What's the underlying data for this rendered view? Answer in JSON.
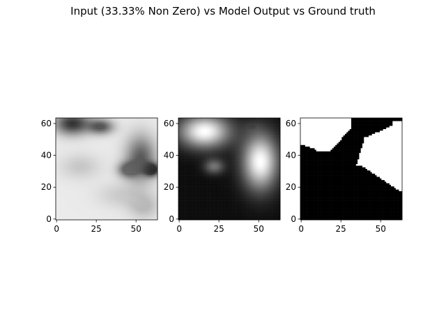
{
  "title": "Input (33.33% Non Zero) vs Model Output vs Ground truth",
  "chart_data": [
    {
      "type": "heatmap",
      "colormap": "gray",
      "image_size": [
        64,
        64
      ],
      "xticks": [
        0,
        25,
        50
      ],
      "yticks": [
        0,
        20,
        40,
        60
      ],
      "xlim": [
        -0.5,
        63.5
      ],
      "ylim": [
        63.5,
        -0.5
      ],
      "grid": false,
      "description_values": {
        "blobs": [
          {
            "cx": 10,
            "cy": 3,
            "rx": 14,
            "ry": 9,
            "value": 0.2
          },
          {
            "cx": 28,
            "cy": 5,
            "rx": 10,
            "ry": 6,
            "value": 0.35
          },
          {
            "cx": 53,
            "cy": 25,
            "rx": 12,
            "ry": 18,
            "value": 0.35
          },
          {
            "cx": 60,
            "cy": 32,
            "rx": 6,
            "ry": 5,
            "value": 0.1
          },
          {
            "cx": 45,
            "cy": 32,
            "rx": 8,
            "ry": 6,
            "value": 0.4
          },
          {
            "cx": 15,
            "cy": 30,
            "rx": 16,
            "ry": 10,
            "value": 0.78
          },
          {
            "cx": 40,
            "cy": 48,
            "rx": 18,
            "ry": 10,
            "value": 0.8
          },
          {
            "cx": 55,
            "cy": 55,
            "rx": 12,
            "ry": 10,
            "value": 0.72
          }
        ],
        "background": 0.92
      }
    },
    {
      "type": "heatmap",
      "colormap": "gray",
      "image_size": [
        64,
        64
      ],
      "xticks": [
        0,
        25,
        50
      ],
      "yticks": [
        0,
        20,
        40,
        60
      ],
      "xlim": [
        -0.5,
        63.5
      ],
      "ylim": [
        63.5,
        -0.5
      ],
      "grid": false,
      "description_values": {
        "blobs": [
          {
            "cx": 16,
            "cy": 8,
            "rx": 20,
            "ry": 13,
            "value": 1.0
          },
          {
            "cx": 51,
            "cy": 27,
            "rx": 14,
            "ry": 22,
            "value": 1.0
          },
          {
            "cx": 46,
            "cy": 5,
            "rx": 8,
            "ry": 5,
            "value": 0.1
          },
          {
            "cx": 22,
            "cy": 30,
            "rx": 8,
            "ry": 6,
            "value": 0.45
          }
        ],
        "background": 0.05
      }
    },
    {
      "type": "heatmap",
      "colormap": "gray",
      "image_size": [
        64,
        64
      ],
      "xticks": [
        0,
        25,
        50
      ],
      "yticks": [
        0,
        20,
        40,
        60
      ],
      "xlim": [
        -0.5,
        63.5
      ],
      "ylim": [
        63.5,
        -0.5
      ],
      "grid": false,
      "binary": true,
      "description_values": {
        "regions": [
          {
            "shape": "topleft",
            "value": 1
          },
          {
            "shape": "right",
            "value": 1
          }
        ],
        "background": 0
      }
    }
  ]
}
